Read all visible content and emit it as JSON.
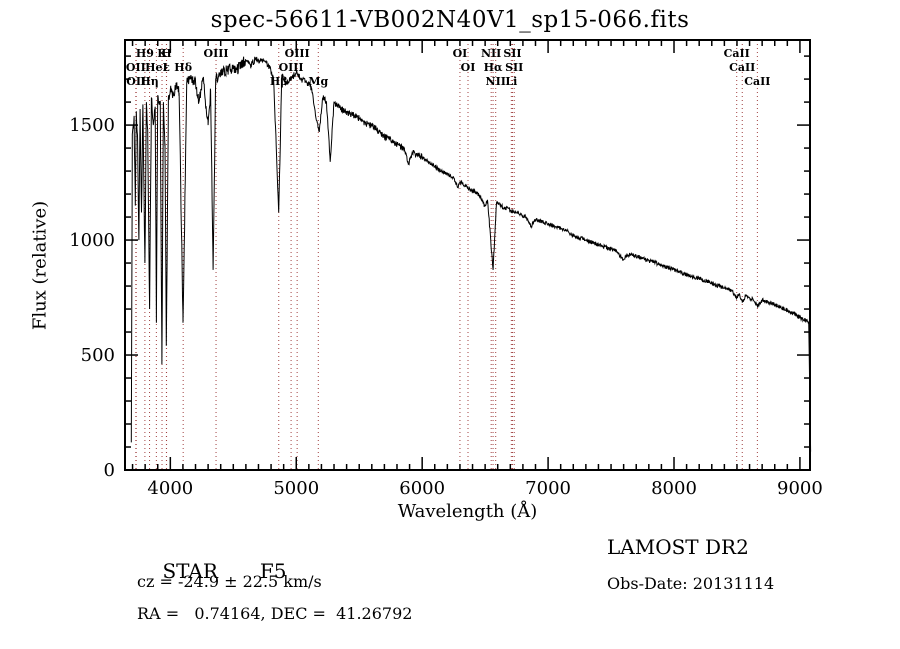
{
  "title": "spec-56611-VB002N40V1_sp15-066.fits",
  "annotations": {
    "object_class": "STAR",
    "object_subclass": "F5",
    "survey": "LAMOST DR2",
    "cz": "cz = -24.9 ± 22.5 km/s",
    "obs_date": "Obs-Date: 20131114",
    "coords": "RA =   0.74164, DEC =  41.26792"
  },
  "chart_data": {
    "type": "line",
    "title": "spec-56611-VB002N40V1_sp15-066.fits",
    "xlabel": "Wavelength (Å)",
    "ylabel": "Flux (relative)",
    "xlim": [
      3640,
      9080
    ],
    "ylim": [
      0,
      1870
    ],
    "x_ticks": [
      4000,
      5000,
      6000,
      7000,
      8000,
      9000
    ],
    "y_ticks": [
      0,
      500,
      1000,
      1500
    ],
    "x_minor_step": 100,
    "y_minor_step": 100,
    "grid": false,
    "legend": "none",
    "colors": {
      "spectrum": "#000000",
      "marker_lines": "#a04040",
      "frame": "#000000",
      "background": "#ffffff"
    },
    "noise": {
      "blue_amp": 50,
      "mid_amp": 28,
      "red_amp": 18,
      "step": 3
    },
    "x": [
      3690,
      3698,
      3712,
      3722,
      3730,
      3740,
      3750,
      3760,
      3771,
      3782,
      3798,
      3810,
      3820,
      3835,
      3850,
      3865,
      3880,
      3889,
      3900,
      3920,
      3933,
      3945,
      3958,
      3968,
      3985,
      4000,
      4026,
      4045,
      4070,
      4101,
      4130,
      4160,
      4200,
      4227,
      4260,
      4300,
      4320,
      4340,
      4360,
      4385,
      4420,
      4460,
      4500,
      4530,
      4570,
      4600,
      4640,
      4680,
      4710,
      4740,
      4780,
      4820,
      4861,
      4885,
      4920,
      4957,
      5000,
      5040,
      5080,
      5120,
      5167,
      5183,
      5210,
      5240,
      5270,
      5300,
      5340,
      5380,
      5430,
      5470,
      5500,
      5540,
      5580,
      5620,
      5660,
      5700,
      5740,
      5780,
      5820,
      5860,
      5890,
      5920,
      5960,
      6000,
      6050,
      6100,
      6150,
      6200,
      6250,
      6280,
      6310,
      6340,
      6380,
      6420,
      6460,
      6495,
      6520,
      6563,
      6590,
      6620,
      6660,
      6700,
      6740,
      6780,
      6820,
      6867,
      6900,
      6950,
      7000,
      7050,
      7100,
      7150,
      7200,
      7250,
      7300,
      7350,
      7400,
      7450,
      7500,
      7550,
      7594,
      7620,
      7660,
      7700,
      7750,
      7800,
      7850,
      7900,
      7950,
      8000,
      8060,
      8120,
      8180,
      8240,
      8300,
      8360,
      8420,
      8460,
      8498,
      8520,
      8542,
      8570,
      8600,
      8630,
      8662,
      8700,
      8750,
      8800,
      8850,
      8900,
      8950,
      9000,
      9040,
      9070,
      9085
    ],
    "flux": [
      120,
      1460,
      1540,
      1150,
      1560,
      1430,
      1000,
      1570,
      1120,
      1590,
      900,
      1600,
      1480,
      700,
      1620,
      1500,
      1580,
      640,
      1630,
      1600,
      460,
      1600,
      1420,
      540,
      1620,
      1650,
      1630,
      1680,
      1640,
      640,
      1680,
      1700,
      1690,
      1600,
      1700,
      1500,
      1650,
      870,
      1700,
      1720,
      1730,
      1740,
      1750,
      1740,
      1770,
      1780,
      1760,
      1790,
      1775,
      1780,
      1760,
      1700,
      1120,
      1720,
      1680,
      1700,
      1730,
      1700,
      1690,
      1660,
      1510,
      1470,
      1620,
      1600,
      1340,
      1600,
      1580,
      1560,
      1550,
      1540,
      1530,
      1510,
      1500,
      1490,
      1470,
      1450,
      1440,
      1420,
      1410,
      1390,
      1330,
      1380,
      1370,
      1360,
      1340,
      1320,
      1300,
      1290,
      1270,
      1230,
      1255,
      1235,
      1220,
      1210,
      1190,
      1150,
      1170,
      870,
      1160,
      1150,
      1140,
      1130,
      1120,
      1110,
      1100,
      1060,
      1090,
      1080,
      1070,
      1060,
      1050,
      1040,
      1020,
      1010,
      1000,
      990,
      980,
      970,
      960,
      950,
      912,
      932,
      938,
      930,
      920,
      910,
      900,
      890,
      880,
      870,
      858,
      846,
      836,
      826,
      812,
      800,
      788,
      780,
      752,
      768,
      730,
      760,
      748,
      740,
      712,
      738,
      730,
      720,
      706,
      694,
      682,
      662,
      652,
      644,
      80
    ],
    "spectral_lines": [
      {
        "label": "H9",
        "wavelength": 3798,
        "row": 1
      },
      {
        "label": "K",
        "wavelength": 3934,
        "row": 1
      },
      {
        "label": "H",
        "wavelength": 3969,
        "row": 1
      },
      {
        "label": "OIII",
        "wavelength": 4363,
        "row": 1
      },
      {
        "label": "OIII",
        "wavelength": 5007,
        "row": 1
      },
      {
        "label": "OI",
        "wavelength": 6300,
        "row": 1
      },
      {
        "label": "NII",
        "wavelength": 6548,
        "row": 1
      },
      {
        "label": "SII",
        "wavelength": 6717,
        "row": 1
      },
      {
        "label": "CaII",
        "wavelength": 8498,
        "row": 1
      },
      {
        "label": "OII",
        "wavelength": 3726,
        "row": 2
      },
      {
        "label": "HeI",
        "wavelength": 3889,
        "row": 2
      },
      {
        "label": "ε",
        "wavelength": 3970,
        "row": 2
      },
      {
        "label": "Hδ",
        "wavelength": 4102,
        "row": 2
      },
      {
        "label": "OIII",
        "wavelength": 4959,
        "row": 2
      },
      {
        "label": "OI",
        "wavelength": 6364,
        "row": 2
      },
      {
        "label": "Hα",
        "wavelength": 6563,
        "row": 2
      },
      {
        "label": "SII",
        "wavelength": 6731,
        "row": 2
      },
      {
        "label": "CaII",
        "wavelength": 8542,
        "row": 2
      },
      {
        "label": "OII",
        "wavelength": 3729,
        "row": 3
      },
      {
        "label": "Hη",
        "wavelength": 3835,
        "row": 3
      },
      {
        "label": "Hβ",
        "wavelength": 4861,
        "row": 3
      },
      {
        "label": "Mg",
        "wavelength": 5175,
        "row": 3
      },
      {
        "label": "NII",
        "wavelength": 6584,
        "row": 3
      },
      {
        "label": "Li",
        "wavelength": 6708,
        "row": 3
      },
      {
        "label": "CaII",
        "wavelength": 8662,
        "row": 3
      }
    ]
  }
}
